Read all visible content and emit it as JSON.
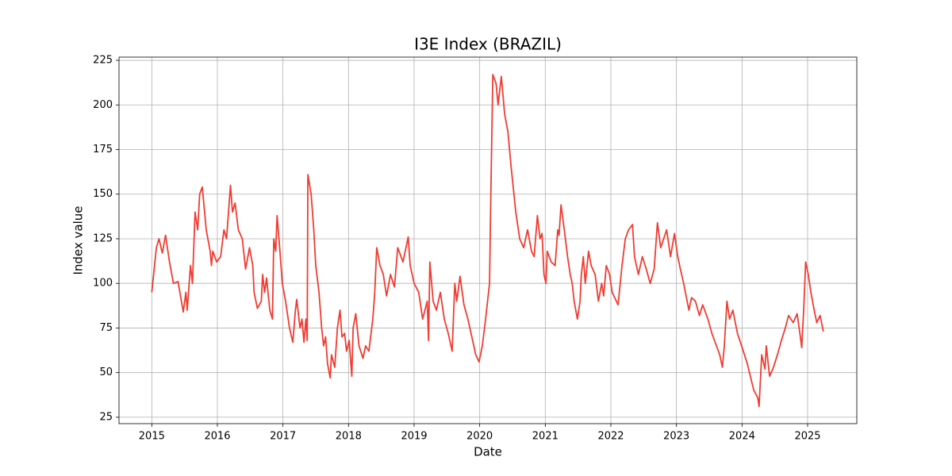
{
  "chart_data": {
    "type": "line",
    "title": "I3E Index (BRAZIL)",
    "x_label": "Date",
    "y_label": "Index value",
    "color": "#f03c32",
    "grid": true,
    "xlim": [
      2014.5,
      2025.75
    ],
    "ylim": [
      21.4,
      226.8
    ],
    "xticks": [
      2015,
      2016,
      2017,
      2018,
      2019,
      2020,
      2021,
      2022,
      2023,
      2024,
      2025
    ],
    "yticks": [
      25,
      50,
      75,
      100,
      125,
      150,
      175,
      200,
      225
    ],
    "x": [
      2015.0,
      2015.07,
      2015.11,
      2015.16,
      2015.21,
      2015.27,
      2015.33,
      2015.4,
      2015.48,
      2015.52,
      2015.54,
      2015.59,
      2015.62,
      2015.66,
      2015.7,
      2015.73,
      2015.77,
      2015.83,
      2015.89,
      2015.91,
      2015.93,
      2015.99,
      2016.05,
      2016.1,
      2016.14,
      2016.2,
      2016.23,
      2016.27,
      2016.32,
      2016.38,
      2016.43,
      2016.49,
      2016.54,
      2016.56,
      2016.61,
      2016.67,
      2016.69,
      2016.72,
      2016.75,
      2016.8,
      2016.84,
      2016.86,
      2016.89,
      2016.91,
      2016.95,
      2016.99,
      2017.04,
      2017.1,
      2017.15,
      2017.19,
      2017.21,
      2017.26,
      2017.29,
      2017.32,
      2017.35,
      2017.37,
      2017.38,
      2017.43,
      2017.47,
      2017.5,
      2017.55,
      2017.59,
      2017.62,
      2017.65,
      2017.68,
      2017.72,
      2017.74,
      2017.79,
      2017.83,
      2017.87,
      2017.9,
      2017.94,
      2017.97,
      2018.01,
      2018.05,
      2018.07,
      2018.11,
      2018.16,
      2018.22,
      2018.26,
      2018.31,
      2018.37,
      2018.4,
      2018.43,
      2018.48,
      2018.53,
      2018.58,
      2018.64,
      2018.7,
      2018.75,
      2018.83,
      2018.91,
      2018.94,
      2019.0,
      2019.07,
      2019.13,
      2019.2,
      2019.22,
      2019.24,
      2019.29,
      2019.34,
      2019.4,
      2019.46,
      2019.52,
      2019.58,
      2019.62,
      2019.65,
      2019.7,
      2019.76,
      2019.82,
      2019.88,
      2019.94,
      2019.99,
      2020.04,
      2020.09,
      2020.15,
      2020.17,
      2020.2,
      2020.25,
      2020.28,
      2020.33,
      2020.38,
      2020.43,
      2020.48,
      2020.55,
      2020.61,
      2020.67,
      2020.73,
      2020.79,
      2020.83,
      2020.88,
      2020.92,
      2020.95,
      2020.98,
      2021.01,
      2021.03,
      2021.09,
      2021.15,
      2021.19,
      2021.21,
      2021.24,
      2021.29,
      2021.34,
      2021.38,
      2021.41,
      2021.44,
      2021.49,
      2021.53,
      2021.55,
      2021.58,
      2021.61,
      2021.66,
      2021.7,
      2021.76,
      2021.81,
      2021.86,
      2021.89,
      2021.93,
      2021.98,
      2022.02,
      2022.11,
      2022.17,
      2022.22,
      2022.27,
      2022.33,
      2022.36,
      2022.42,
      2022.48,
      2022.54,
      2022.6,
      2022.66,
      2022.71,
      2022.76,
      2022.85,
      2022.91,
      2022.97,
      2023.02,
      2023.06,
      2023.11,
      2023.19,
      2023.23,
      2023.29,
      2023.35,
      2023.4,
      2023.48,
      2023.54,
      2023.61,
      2023.66,
      2023.7,
      2023.73,
      2023.77,
      2023.81,
      2023.86,
      2023.93,
      2024.02,
      2024.08,
      2024.18,
      2024.24,
      2024.26,
      2024.3,
      2024.35,
      2024.37,
      2024.42,
      2024.47,
      2024.54,
      2024.6,
      2024.66,
      2024.71,
      2024.78,
      2024.84,
      2024.89,
      2024.91,
      2024.94,
      2024.97,
      2025.01,
      2025.05,
      2025.1,
      2025.14,
      2025.19,
      2025.24
    ],
    "values": [
      95,
      120,
      125,
      117,
      127,
      112,
      100,
      101,
      84,
      95,
      85,
      110,
      100,
      140,
      130,
      150,
      154,
      130,
      118,
      110,
      118,
      112,
      115,
      130,
      125,
      155,
      140,
      145,
      130,
      125,
      108,
      120,
      110,
      95,
      86,
      90,
      105,
      95,
      103,
      85,
      80,
      125,
      118,
      138,
      120,
      100,
      90,
      75,
      67,
      85,
      91,
      75,
      80,
      67,
      80,
      68,
      161,
      150,
      130,
      110,
      95,
      75,
      65,
      70,
      55,
      47,
      60,
      53,
      75,
      85,
      70,
      72,
      62,
      68,
      48,
      75,
      83,
      65,
      58,
      65,
      62,
      80,
      95,
      120,
      110,
      105,
      93,
      105,
      98,
      120,
      112,
      126,
      110,
      100,
      95,
      80,
      90,
      68,
      112,
      90,
      85,
      95,
      80,
      72,
      62,
      100,
      90,
      104,
      88,
      80,
      70,
      60,
      56,
      65,
      80,
      100,
      150,
      217,
      212,
      200,
      216,
      195,
      185,
      165,
      140,
      125,
      120,
      130,
      118,
      115,
      138,
      125,
      128,
      105,
      100,
      118,
      112,
      110,
      130,
      127,
      144,
      130,
      115,
      105,
      100,
      90,
      80,
      90,
      105,
      115,
      100,
      118,
      110,
      105,
      90,
      100,
      93,
      110,
      105,
      95,
      88,
      110,
      125,
      130,
      133,
      115,
      105,
      115,
      108,
      100,
      108,
      134,
      120,
      130,
      115,
      128,
      115,
      108,
      100,
      85,
      92,
      90,
      82,
      88,
      80,
      72,
      65,
      60,
      53,
      65,
      90,
      80,
      85,
      72,
      62,
      55,
      40,
      36,
      31,
      60,
      52,
      65,
      48,
      52,
      60,
      68,
      75,
      82,
      78,
      83,
      70,
      64,
      85,
      112,
      105,
      95,
      85,
      78,
      82,
      73
    ]
  }
}
